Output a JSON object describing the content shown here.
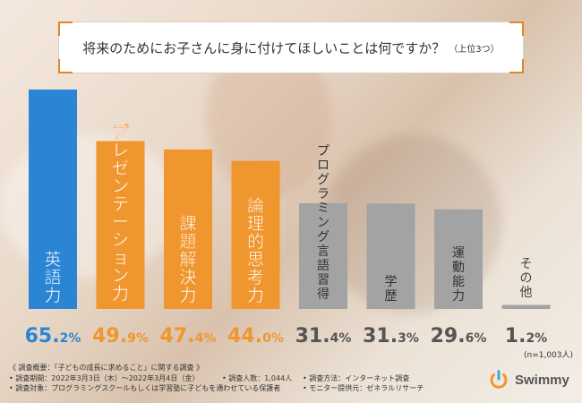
{
  "title": {
    "main": "将来のためにお子さんに身に付けてほしいことは何ですか？",
    "sub": "（上位3つ）"
  },
  "chart_data": {
    "type": "bar",
    "title": "将来のためにお子さんに身に付けてほしいことは何ですか？（上位3つ）",
    "categories": [
      "英語力",
      "プレゼンテーション力",
      "課題解決力",
      "論理的思考力",
      "プログラミング言語習得",
      "学歴",
      "運動能力",
      "その他"
    ],
    "values": [
      65.2,
      49.9,
      47.4,
      44.0,
      31.4,
      31.3,
      29.6,
      1.2
    ],
    "value_labels": [
      {
        "int": "65.",
        "dec": "2%"
      },
      {
        "int": "49.",
        "dec": "9%"
      },
      {
        "int": "47.",
        "dec": "4%"
      },
      {
        "int": "44.",
        "dec": "0%"
      },
      {
        "int": "31.",
        "dec": "4%"
      },
      {
        "int": "31.",
        "dec": "3%"
      },
      {
        "int": "29.",
        "dec": "6%"
      },
      {
        "int": "1.",
        "dec": "2%"
      }
    ],
    "ylim": [
      0,
      70
    ],
    "colors": [
      "#2a86d5",
      "#f0962e",
      "#f0962e",
      "#f0962e",
      "#a3a3a3",
      "#a3a3a3",
      "#a3a3a3",
      "#a3a3a3"
    ],
    "label_colors": [
      "#2a86d5",
      "#f0962e",
      "#f0962e",
      "#f0962e",
      "#555555",
      "#555555",
      "#555555",
      "#555555"
    ],
    "grid": false,
    "legend": "none"
  },
  "n_note": "(n=1,003人)",
  "footnote": {
    "line1": "《 調査概要：「子どもの成長に求めること」に関する調査 》",
    "line2a": "• 調査期間：2022年3月3日（木）〜2022年3月4日（金）",
    "line2b": "• 調査人数：1,044人",
    "line2c": "• 調査方法：インターネット調査",
    "line3a": "• 調査対象：プログラミングスクールもしくは学習塾に子どもを通わせている保護者",
    "line3b": "• モニター提供元：ゼネラルリサーチ"
  },
  "logo": {
    "name": "Swimmy",
    "icon": "power-icon",
    "color": "#f0962e",
    "accent": "#3bb0c9"
  }
}
